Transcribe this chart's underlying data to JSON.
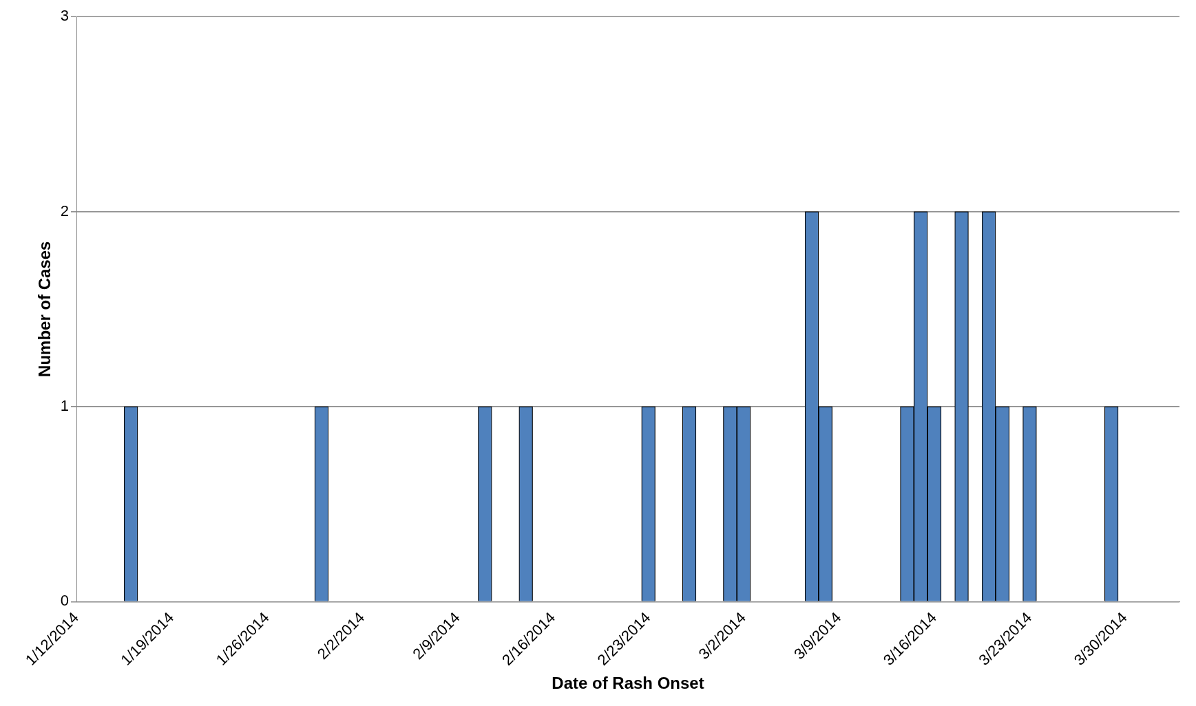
{
  "chart_data": {
    "type": "bar",
    "xlabel": "Date of Rash Onset",
    "ylabel": "Number of Cases",
    "x": [
      "2014-01-16",
      "2014-01-30",
      "2014-02-11",
      "2014-02-14",
      "2014-02-23",
      "2014-02-26",
      "2014-03-01",
      "2014-03-02",
      "2014-03-07",
      "2014-03-08",
      "2014-03-14",
      "2014-03-15",
      "2014-03-16",
      "2014-03-18",
      "2014-03-20",
      "2014-03-21",
      "2014-03-23",
      "2014-03-29"
    ],
    "values": [
      1,
      1,
      1,
      1,
      1,
      1,
      1,
      1,
      2,
      1,
      1,
      2,
      1,
      2,
      2,
      1,
      1,
      1
    ],
    "color": "#4f81bd",
    "xlim": [
      "2014-01-12",
      "2014-04-03"
    ],
    "xticks": [
      {
        "value": "2014-01-12",
        "label": "1/12/2014"
      },
      {
        "value": "2014-01-19",
        "label": "1/19/2014"
      },
      {
        "value": "2014-01-26",
        "label": "1/26/2014"
      },
      {
        "value": "2014-02-02",
        "label": "2/2/2014"
      },
      {
        "value": "2014-02-09",
        "label": "2/9/2014"
      },
      {
        "value": "2014-02-16",
        "label": "2/16/2014"
      },
      {
        "value": "2014-02-23",
        "label": "2/23/2014"
      },
      {
        "value": "2014-03-02",
        "label": "3/2/2014"
      },
      {
        "value": "2014-03-09",
        "label": "3/9/2014"
      },
      {
        "value": "2014-03-16",
        "label": "3/16/2014"
      },
      {
        "value": "2014-03-23",
        "label": "3/23/2014"
      },
      {
        "value": "2014-03-30",
        "label": "3/30/2014"
      }
    ],
    "ylim": [
      0,
      3
    ],
    "yticks": [
      0,
      1,
      2,
      3
    ],
    "grid": "y",
    "legend": false
  }
}
